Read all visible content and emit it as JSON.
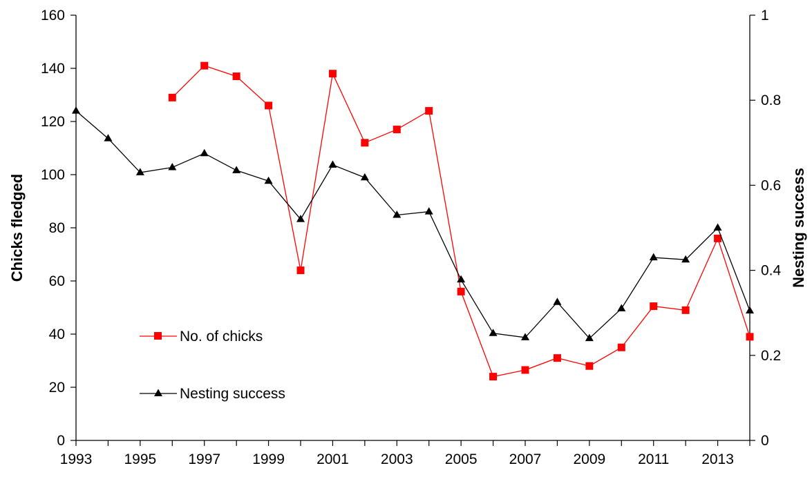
{
  "chart_data": {
    "type": "line",
    "x": [
      1993,
      1994,
      1995,
      1996,
      1997,
      1998,
      1999,
      2000,
      2001,
      2002,
      2003,
      2004,
      2005,
      2006,
      2007,
      2008,
      2009,
      2010,
      2011,
      2012,
      2013,
      2014
    ],
    "xlim": [
      1993,
      2014
    ],
    "x_tick_labels": [
      "1993",
      "1995",
      "1997",
      "1999",
      "2001",
      "2003",
      "2005",
      "2007",
      "2009",
      "2011",
      "2013"
    ],
    "ylabel": "Chicks fledged",
    "ylim": [
      0,
      160
    ],
    "y_tick_labels": [
      "0",
      "20",
      "40",
      "60",
      "80",
      "100",
      "120",
      "140",
      "160"
    ],
    "y2label": "Nesting success",
    "y2lim": [
      0,
      1
    ],
    "y2_tick_labels": [
      "0",
      "0.2",
      "0.4",
      "0.6",
      "0.8",
      "1"
    ],
    "grid": false,
    "legend_position": "lower-left",
    "series": [
      {
        "name": "No. of chicks",
        "axis": "left",
        "marker": "square",
        "color": "#ff0000",
        "values": [
          null,
          null,
          null,
          129,
          141,
          137,
          126,
          64,
          138,
          112,
          117,
          124,
          56,
          24,
          26.5,
          31,
          28,
          35,
          50.5,
          49,
          76,
          39
        ]
      },
      {
        "name": "Nesting success",
        "axis": "right",
        "marker": "triangle",
        "color": "#000000",
        "values": [
          0.775,
          0.71,
          0.63,
          0.642,
          0.675,
          0.635,
          0.61,
          0.52,
          0.648,
          0.618,
          0.53,
          0.538,
          0.378,
          0.252,
          0.242,
          0.325,
          0.24,
          0.31,
          0.43,
          0.425,
          0.5,
          0.305
        ]
      }
    ]
  }
}
